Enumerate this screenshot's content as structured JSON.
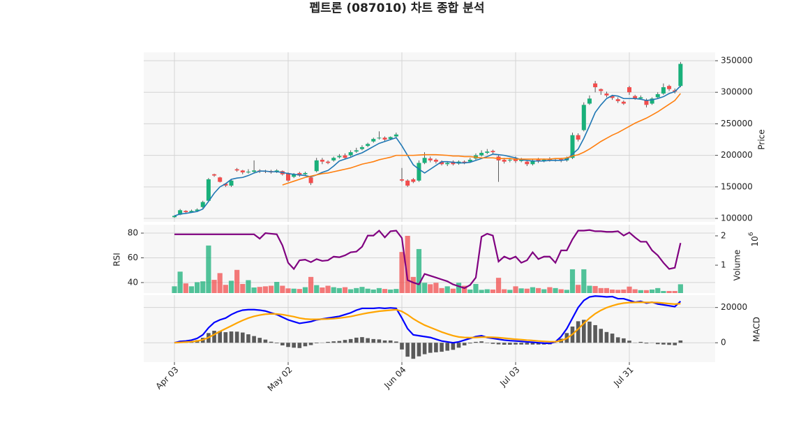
{
  "chart_data": [
    {
      "type": "candlestick",
      "title": "펩트론 (087010) 차트 종합 분석",
      "ylabel": "Price",
      "ylim": [
        94500,
        363300
      ],
      "yticks": [
        100000,
        150000,
        200000,
        250000,
        300000,
        350000
      ],
      "grid": true,
      "up_color": "#19b07a",
      "down_color": "#f24d4d",
      "open": [
        102000,
        106000,
        112000,
        110000,
        112000,
        118000,
        128000,
        170000,
        165000,
        155000,
        152000,
        178000,
        176000,
        173000,
        174000,
        176000,
        175000,
        175000,
        174000,
        175000,
        172000,
        166000,
        172000,
        170000,
        165000,
        175000,
        193000,
        190000,
        192000,
        197000,
        200000,
        200000,
        206000,
        210000,
        215000,
        222000,
        228000,
        228000,
        226000,
        230000,
        162000,
        160000,
        162000,
        160000,
        188000,
        195000,
        193000,
        190000,
        186000,
        190000,
        187000,
        190000,
        190000,
        195000,
        200000,
        204000,
        207000,
        198000,
        193000,
        192000,
        195000,
        191000,
        190000,
        186000,
        193000,
        191000,
        194000,
        192000,
        194000,
        192000,
        196000,
        232000,
        240000,
        282000,
        314000,
        305000,
        298000,
        294000,
        289000,
        285000,
        308000,
        294000,
        290000,
        288000,
        282000,
        292000,
        298000,
        310000,
        303000,
        310000
      ],
      "high": [
        105000,
        115000,
        113000,
        114000,
        116000,
        128000,
        164000,
        171000,
        166000,
        156000,
        162000,
        180000,
        177000,
        178000,
        192000,
        178000,
        177000,
        177000,
        178000,
        176000,
        173000,
        172000,
        174000,
        174000,
        167000,
        196000,
        196000,
        192000,
        198000,
        202000,
        203000,
        208000,
        212000,
        216000,
        220000,
        228000,
        238000,
        230000,
        230000,
        236000,
        180000,
        162000,
        164000,
        192000,
        205000,
        198000,
        195000,
        192000,
        190000,
        192000,
        192000,
        192000,
        196000,
        203000,
        208000,
        210000,
        209000,
        200000,
        196000,
        196000,
        198000,
        196000,
        192000,
        194000,
        196000,
        195000,
        197000,
        195000,
        196000,
        198000,
        236000,
        235000,
        284000,
        295000,
        318000,
        306000,
        301000,
        296000,
        292000,
        287000,
        310000,
        296000,
        295000,
        290000,
        292000,
        300000,
        314000,
        312000,
        306000,
        348000
      ],
      "low": [
        101000,
        105000,
        108000,
        109000,
        111000,
        116000,
        126000,
        166000,
        157000,
        150000,
        150000,
        174000,
        170000,
        171000,
        172000,
        172000,
        172000,
        171000,
        172000,
        168000,
        158000,
        164000,
        166000,
        168000,
        153000,
        173000,
        186000,
        186000,
        190000,
        195000,
        194000,
        198000,
        204000,
        208000,
        213000,
        220000,
        225000,
        222000,
        224000,
        228000,
        158000,
        150000,
        156000,
        158000,
        186000,
        189000,
        187000,
        184000,
        183000,
        184000,
        185000,
        186000,
        188000,
        193000,
        198000,
        202000,
        202000,
        158000,
        187000,
        189000,
        188000,
        189000,
        183000,
        184000,
        188000,
        189000,
        190000,
        190000,
        189000,
        190000,
        194000,
        222000,
        238000,
        280000,
        300000,
        296000,
        292000,
        288000,
        283000,
        280000,
        296000,
        288000,
        288000,
        276000,
        280000,
        290000,
        296000,
        302000,
        298000,
        308000
      ],
      "close": [
        104000,
        113000,
        110000,
        112000,
        114000,
        126000,
        162000,
        168000,
        158000,
        152000,
        160000,
        176000,
        173000,
        174000,
        176000,
        175000,
        174000,
        173000,
        176000,
        170000,
        160000,
        170000,
        168000,
        172000,
        156000,
        192000,
        190000,
        188000,
        196000,
        199000,
        196000,
        205000,
        208000,
        213000,
        218000,
        226000,
        228000,
        225000,
        229000,
        233000,
        160000,
        152000,
        158000,
        188000,
        196000,
        192000,
        190000,
        186000,
        188000,
        186000,
        190000,
        188000,
        193000,
        200000,
        204000,
        206000,
        205000,
        192000,
        190000,
        193000,
        191000,
        194000,
        186000,
        192000,
        191000,
        193000,
        192000,
        193000,
        192000,
        196000,
        232000,
        225000,
        280000,
        290000,
        308000,
        302000,
        295000,
        291000,
        286000,
        282000,
        300000,
        290000,
        292000,
        280000,
        290000,
        297000,
        308000,
        305000,
        301000,
        345000
      ],
      "lines": [
        {
          "color": "#1f77b4",
          "values": [
            104000,
            107000,
            108000,
            109500,
            111000,
            115000,
            127000,
            140000,
            150000,
            155000,
            162000,
            164000,
            165000,
            168000,
            172000,
            175000,
            175000,
            174000,
            174000,
            173000,
            171000,
            170000,
            169000,
            168000,
            166000,
            169000,
            173000,
            176000,
            183000,
            191000,
            194000,
            197000,
            201000,
            204000,
            209000,
            214000,
            219000,
            222000,
            225000,
            228000,
            215000,
            200000,
            185000,
            178000,
            172000,
            178000,
            184000,
            190000,
            190000,
            189000,
            188000,
            188000,
            189000,
            192000,
            195000,
            198000,
            202000,
            201000,
            200000,
            198000,
            196000,
            193000,
            192000,
            191000,
            191000,
            191000,
            192000,
            192000,
            192000,
            193000,
            202000,
            210000,
            227000,
            247000,
            268000,
            280000,
            290000,
            295000,
            294000,
            290000,
            290000,
            290000,
            289000,
            287000,
            288000,
            290000,
            293000,
            298000,
            301000,
            310000
          ]
        },
        {
          "color": "#ff7f0e",
          "values": [
            null,
            null,
            null,
            null,
            null,
            null,
            null,
            null,
            null,
            null,
            null,
            null,
            null,
            null,
            null,
            null,
            null,
            null,
            null,
            153000,
            156000,
            159000,
            162000,
            165000,
            167000,
            169000,
            171000,
            172000,
            174000,
            176000,
            178000,
            180000,
            183000,
            186000,
            188000,
            190000,
            193000,
            195000,
            197000,
            200000,
            200000,
            200000,
            200000,
            200500,
            201000,
            201000,
            201000,
            200500,
            200000,
            199000,
            199000,
            198000,
            198000,
            197000,
            196000,
            196000,
            196000,
            195000,
            195000,
            195000,
            194000,
            194000,
            194000,
            194000,
            194000,
            194000,
            194000,
            195000,
            195000,
            196000,
            199000,
            201000,
            205000,
            210000,
            216000,
            222000,
            227000,
            232000,
            236000,
            241000,
            246000,
            251000,
            255000,
            259000,
            264000,
            269000,
            275000,
            281000,
            287000,
            298000
          ]
        }
      ]
    },
    {
      "type": "rsi_volume",
      "ylabel": "RSI",
      "ylim": [
        31.5,
        86.8
      ],
      "yticks": [
        40,
        60,
        80
      ],
      "rsi": {
        "color": "#800080",
        "values": [
          79,
          79,
          79,
          79,
          79,
          79,
          79,
          79,
          79,
          79,
          79,
          79,
          79,
          79,
          79,
          75.5,
          80,
          79.5,
          79,
          70,
          56,
          51,
          58,
          58.5,
          56.5,
          59,
          57.5,
          58,
          61,
          60.5,
          62,
          64.5,
          65,
          69,
          78,
          78,
          82,
          76.5,
          81.5,
          82,
          76,
          42,
          40,
          38.5,
          47,
          45.5,
          44,
          42.5,
          41,
          38.5,
          37,
          35.5,
          38,
          44,
          77,
          79.5,
          78,
          57,
          61,
          59,
          61,
          56,
          58,
          64.5,
          59,
          61,
          61,
          56,
          66,
          66,
          75,
          82,
          82,
          82.5,
          81.5,
          81.5,
          81,
          81,
          81.5,
          78,
          80.5,
          76.5,
          73,
          73,
          66,
          62,
          56,
          51,
          52,
          72
        ]
      },
      "y2label": "Volume",
      "y2_scale": {
        "base": 10,
        "exponent": 6
      },
      "y2lim": [
        50000,
        2380000
      ],
      "y2ticks": [
        {
          "value": 1000000,
          "label": "1"
        },
        {
          "value": 2000000,
          "label": "2"
        }
      ],
      "volume": {
        "values": [
          280000,
          780000,
          380000,
          280000,
          420000,
          450000,
          1670000,
          500000,
          730000,
          330000,
          470000,
          840000,
          360000,
          490000,
          240000,
          260000,
          280000,
          300000,
          430000,
          300000,
          210000,
          200000,
          190000,
          250000,
          600000,
          320000,
          240000,
          300000,
          250000,
          220000,
          250000,
          180000,
          220000,
          260000,
          200000,
          170000,
          220000,
          190000,
          170000,
          190000,
          1450000,
          2000000,
          600000,
          1550000,
          400000,
          350000,
          400000,
          220000,
          280000,
          200000,
          400000,
          300000,
          170000,
          360000,
          160000,
          180000,
          170000,
          570000,
          180000,
          160000,
          280000,
          210000,
          200000,
          250000,
          220000,
          180000,
          250000,
          220000,
          180000,
          160000,
          860000,
          330000,
          860000,
          300000,
          290000,
          220000,
          220000,
          170000,
          160000,
          170000,
          270000,
          180000,
          150000,
          150000,
          170000,
          220000,
          120000,
          120000,
          120000,
          350000
        ]
      }
    },
    {
      "type": "macd",
      "ylabel": "MACD",
      "ylim": [
        -11000,
        27000
      ],
      "yticks": [
        0,
        20000
      ],
      "categories": [
        "Apr 03",
        null,
        null,
        null,
        null,
        null,
        null,
        null,
        null,
        null,
        null,
        null,
        null,
        null,
        null,
        null,
        null,
        null,
        null,
        null,
        "May 02",
        null,
        null,
        null,
        null,
        null,
        null,
        null,
        null,
        null,
        null,
        null,
        null,
        null,
        null,
        null,
        null,
        null,
        null,
        null,
        "Jun 04",
        null,
        null,
        null,
        null,
        null,
        null,
        null,
        null,
        null,
        null,
        null,
        null,
        null,
        null,
        null,
        null,
        null,
        null,
        null,
        "Jul 03",
        null,
        null,
        null,
        null,
        null,
        null,
        null,
        null,
        null,
        null,
        null,
        null,
        null,
        null,
        null,
        null,
        null,
        null,
        null,
        "Jul 31",
        null,
        null,
        null,
        null,
        null,
        null,
        null,
        null,
        null
      ],
      "macd": {
        "color": "#0000ff",
        "values": [
          0,
          800,
          1000,
          1500,
          2500,
          4500,
          8500,
          11500,
          13000,
          14000,
          16000,
          17500,
          18500,
          18800,
          18800,
          18500,
          18000,
          17000,
          16000,
          14500,
          13000,
          12000,
          11000,
          11500,
          12000,
          13000,
          13500,
          14000,
          14500,
          15000,
          16000,
          17000,
          18500,
          19500,
          19500,
          19500,
          19800,
          19500,
          19800,
          19500,
          14000,
          8000,
          4500,
          4000,
          3500,
          3000,
          2000,
          1000,
          500,
          0,
          500,
          1500,
          2500,
          3500,
          4000,
          3000,
          2500,
          2000,
          1500,
          1200,
          1000,
          800,
          500,
          300,
          0,
          -200,
          -300,
          500,
          3500,
          8000,
          14000,
          20000,
          24000,
          26000,
          26500,
          26300,
          26000,
          26200,
          25000,
          25000,
          24000,
          23000,
          23500,
          22500,
          23000,
          22000,
          21500,
          21000,
          20500,
          23500
        ]
      },
      "signal": {
        "color": "#ffa500",
        "values": [
          0,
          200,
          400,
          600,
          1000,
          1700,
          3000,
          4700,
          6400,
          8000,
          9600,
          11200,
          12700,
          14000,
          15000,
          15700,
          16200,
          16400,
          16300,
          16000,
          15400,
          14800,
          14000,
          13500,
          13300,
          13300,
          13400,
          13500,
          13700,
          14000,
          14400,
          14900,
          15600,
          16300,
          16900,
          17400,
          17900,
          18200,
          18500,
          18800,
          17800,
          15900,
          13600,
          11700,
          10000,
          8700,
          7400,
          6100,
          5000,
          4000,
          3300,
          3000,
          2900,
          3000,
          3200,
          3200,
          3100,
          2900,
          2600,
          2300,
          2000,
          1800,
          1500,
          1300,
          1000,
          800,
          600,
          600,
          1200,
          2500,
          4800,
          7800,
          11000,
          14000,
          16500,
          18400,
          19900,
          21000,
          21900,
          22500,
          22800,
          22900,
          23000,
          22900,
          22900,
          22800,
          22500,
          22200,
          21900,
          22200
        ]
      },
      "histogram": {
        "color": "#5a5a5a",
        "values": [
          0,
          600,
          600,
          900,
          1500,
          2800,
          5500,
          6800,
          6600,
          6000,
          6400,
          6300,
          5800,
          4800,
          3800,
          2800,
          1800,
          600,
          -300,
          -1500,
          -2400,
          -2800,
          -3000,
          -2000,
          -1300,
          -300,
          100,
          500,
          800,
          1000,
          1600,
          2100,
          2900,
          3200,
          2600,
          2100,
          1900,
          1300,
          1300,
          700,
          -3800,
          -7900,
          -9100,
          -7700,
          -6500,
          -5700,
          -5400,
          -5100,
          -4500,
          -4000,
          -2800,
          -1500,
          -400,
          500,
          800,
          -200,
          -600,
          -900,
          -1100,
          -1100,
          -1000,
          -1000,
          -1000,
          -1000,
          -1000,
          -1000,
          -900,
          -100,
          2300,
          5500,
          9200,
          12200,
          13000,
          12000,
          10000,
          7900,
          6100,
          5200,
          3100,
          2500,
          1200,
          100,
          500,
          -400,
          100,
          -800,
          -1000,
          -1200,
          -1400,
          1300
        ]
      }
    }
  ]
}
